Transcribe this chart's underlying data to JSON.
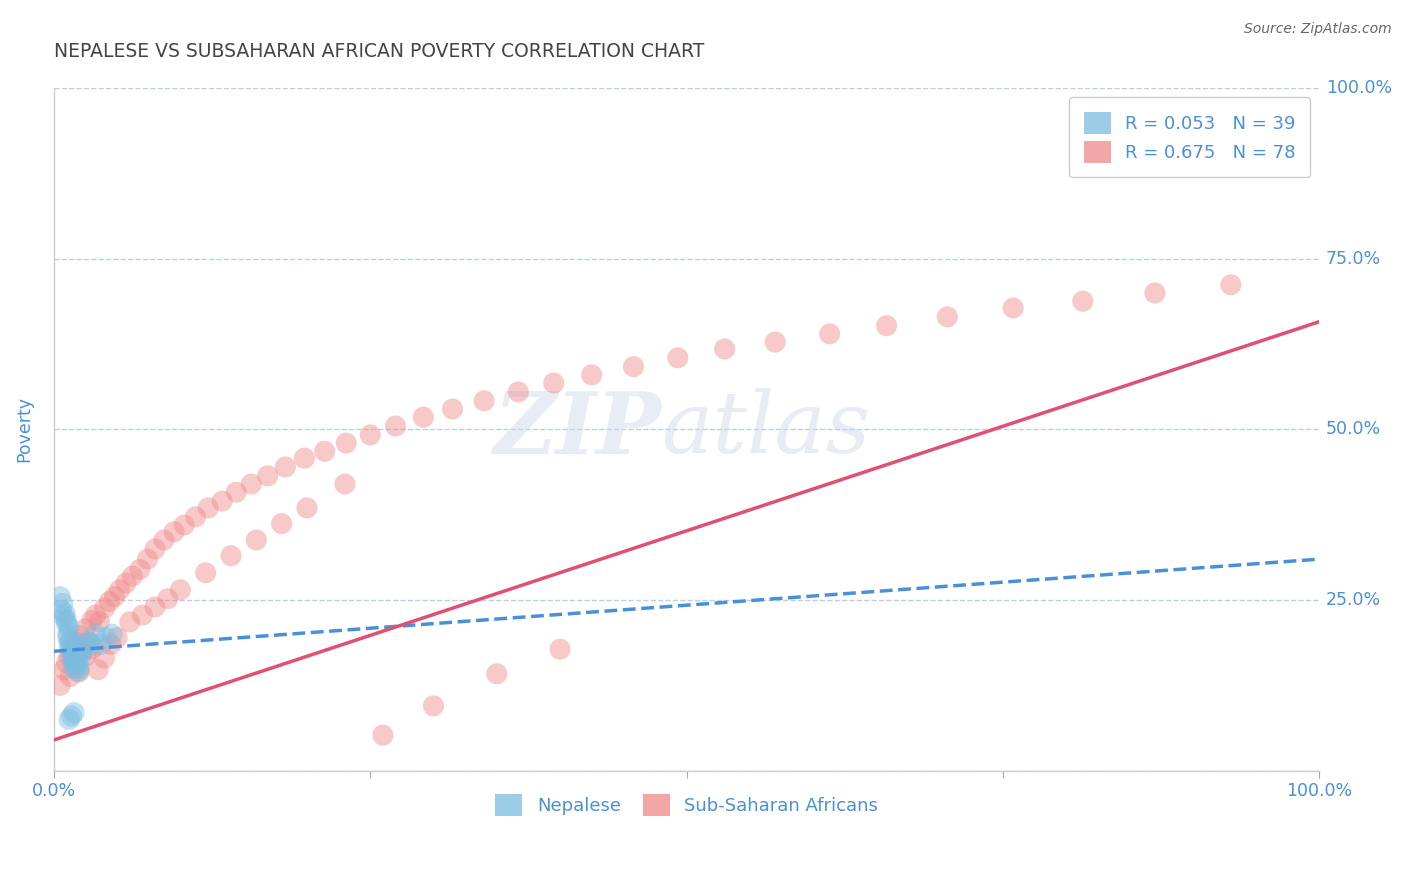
{
  "title": "NEPALESE VS SUBSAHARAN AFRICAN POVERTY CORRELATION CHART",
  "source": "Source: ZipAtlas.com",
  "ylabel": "Poverty",
  "blue_color": "#7bbde0",
  "pink_color": "#f08888",
  "blue_line_color": "#4a90d9",
  "pink_line_color": "#e05070",
  "grid_color": "#c0cfe0",
  "axis_label_color": "#4a90d9",
  "background_color": "#ffffff",
  "watermark": "ZIPatlas",
  "legend1_label": "R = 0.053   N = 39",
  "legend2_label": "R = 0.675   N = 78",
  "bottom_legend1": "Nepalese",
  "bottom_legend2": "Sub-Saharan Africans",
  "ytick_positions": [
    0.0,
    0.25,
    0.5,
    0.75,
    1.0
  ],
  "ytick_labels_right": [
    "",
    "25.0%",
    "50.0%",
    "75.0%",
    "100.0%"
  ],
  "xtick_positions": [
    0.0,
    0.25,
    0.5,
    0.75,
    1.0
  ],
  "xtick_labels": [
    "0.0%",
    "",
    "",
    "",
    "100.0%"
  ],
  "nepalese_x": [
    0.005,
    0.006,
    0.007,
    0.008,
    0.009,
    0.01,
    0.01,
    0.011,
    0.011,
    0.012,
    0.012,
    0.013,
    0.013,
    0.014,
    0.014,
    0.015,
    0.015,
    0.016,
    0.016,
    0.017,
    0.017,
    0.018,
    0.018,
    0.019,
    0.019,
    0.02,
    0.021,
    0.022,
    0.023,
    0.025,
    0.027,
    0.03,
    0.033,
    0.037,
    0.041,
    0.046,
    0.012,
    0.014,
    0.016
  ],
  "nepalese_y": [
    0.255,
    0.235,
    0.245,
    0.225,
    0.23,
    0.215,
    0.22,
    0.2,
    0.195,
    0.185,
    0.21,
    0.19,
    0.18,
    0.175,
    0.17,
    0.165,
    0.16,
    0.155,
    0.15,
    0.165,
    0.17,
    0.175,
    0.16,
    0.155,
    0.145,
    0.15,
    0.165,
    0.175,
    0.185,
    0.18,
    0.19,
    0.185,
    0.2,
    0.185,
    0.195,
    0.2,
    0.075,
    0.08,
    0.085
  ],
  "subsaharan_x": [
    0.005,
    0.008,
    0.01,
    0.012,
    0.013,
    0.015,
    0.016,
    0.018,
    0.02,
    0.022,
    0.025,
    0.028,
    0.03,
    0.033,
    0.036,
    0.04,
    0.044,
    0.048,
    0.052,
    0.057,
    0.062,
    0.068,
    0.074,
    0.08,
    0.087,
    0.095,
    0.103,
    0.112,
    0.122,
    0.133,
    0.144,
    0.156,
    0.169,
    0.183,
    0.198,
    0.214,
    0.231,
    0.25,
    0.27,
    0.292,
    0.315,
    0.34,
    0.367,
    0.395,
    0.425,
    0.458,
    0.493,
    0.53,
    0.57,
    0.613,
    0.658,
    0.706,
    0.758,
    0.813,
    0.87,
    0.93,
    0.02,
    0.025,
    0.03,
    0.035,
    0.04,
    0.045,
    0.05,
    0.06,
    0.07,
    0.08,
    0.09,
    0.1,
    0.12,
    0.14,
    0.16,
    0.18,
    0.2,
    0.23,
    0.26,
    0.3,
    0.35,
    0.4
  ],
  "subsaharan_y": [
    0.125,
    0.148,
    0.158,
    0.168,
    0.138,
    0.178,
    0.165,
    0.188,
    0.198,
    0.175,
    0.208,
    0.188,
    0.22,
    0.228,
    0.218,
    0.238,
    0.248,
    0.255,
    0.265,
    0.275,
    0.285,
    0.295,
    0.31,
    0.325,
    0.338,
    0.35,
    0.36,
    0.372,
    0.385,
    0.395,
    0.408,
    0.42,
    0.432,
    0.445,
    0.458,
    0.468,
    0.48,
    0.492,
    0.505,
    0.518,
    0.53,
    0.542,
    0.555,
    0.568,
    0.58,
    0.592,
    0.605,
    0.618,
    0.628,
    0.64,
    0.652,
    0.665,
    0.678,
    0.688,
    0.7,
    0.712,
    0.145,
    0.168,
    0.178,
    0.148,
    0.165,
    0.185,
    0.195,
    0.218,
    0.228,
    0.24,
    0.252,
    0.265,
    0.29,
    0.315,
    0.338,
    0.362,
    0.385,
    0.42,
    0.052,
    0.095,
    0.142,
    0.178
  ],
  "nepalese_trend_x": [
    0.0,
    1.0
  ],
  "nepalese_trend_y": [
    0.175,
    0.31
  ],
  "subsaharan_trend_x": [
    0.0,
    1.0
  ],
  "subsaharan_trend_y": [
    0.045,
    0.658
  ]
}
